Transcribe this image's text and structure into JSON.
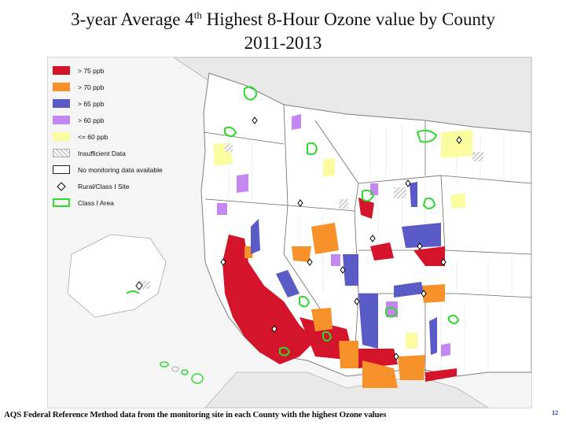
{
  "title": {
    "line1_part1": "3-year Average 4",
    "line1_sup": "th",
    "line1_part2": " Highest 8-Hour Ozone value by County",
    "line2": "2011-2013"
  },
  "legend": [
    {
      "label": "> 75 ppb",
      "color": "#d4142a"
    },
    {
      "label": "> 70 ppb",
      "color": "#f7922a"
    },
    {
      "label": "> 65 ppb",
      "color": "#5b5bc8"
    },
    {
      "label": "> 60 ppb",
      "color": "#c487f2"
    },
    {
      "label": "<= 60 ppb",
      "color": "#fbfba0"
    },
    {
      "label": "Insufficient Data",
      "color": "hatch"
    },
    {
      "label": "No monitoring data available",
      "color": "#ffffff"
    },
    {
      "label": "Rural/Class I Site",
      "color": "diamond"
    },
    {
      "label": "Class I Area",
      "color": "#2ddb2d"
    }
  ],
  "footer": "AQS Federal Reference Method data from the monitoring site in each County with the highest Ozone values",
  "page_number": "12"
}
